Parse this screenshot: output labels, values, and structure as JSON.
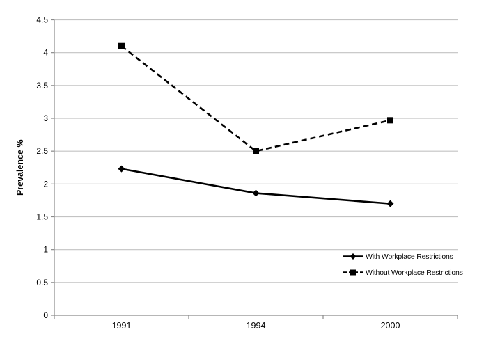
{
  "chart_data": {
    "type": "line",
    "title": "",
    "xlabel": "",
    "ylabel": "Prevalence %",
    "categories": [
      "1991",
      "1994",
      "2000"
    ],
    "series": [
      {
        "name": "With Workplace Restrictions",
        "values": [
          2.23,
          1.86,
          1.7
        ],
        "line_style": "solid",
        "marker": "diamond",
        "color": "#000000"
      },
      {
        "name": "Without Workplace Restrictions",
        "values": [
          4.1,
          2.5,
          2.97
        ],
        "line_style": "dashed",
        "marker": "square",
        "color": "#000000"
      }
    ],
    "ylim": [
      0,
      4.5
    ],
    "ytick_step": 0.5,
    "ytick_labels": [
      "0",
      "0.5",
      "1",
      "1.5",
      "2",
      "2.5",
      "3",
      "3.5",
      "4",
      "4.5"
    ],
    "grid": "horizontal",
    "legend_position": "inside-right-lower"
  },
  "colors": {
    "background": "#ffffff",
    "gridline": "#c3c3c3",
    "axis": "#8a8a8a",
    "text": "#000000"
  }
}
